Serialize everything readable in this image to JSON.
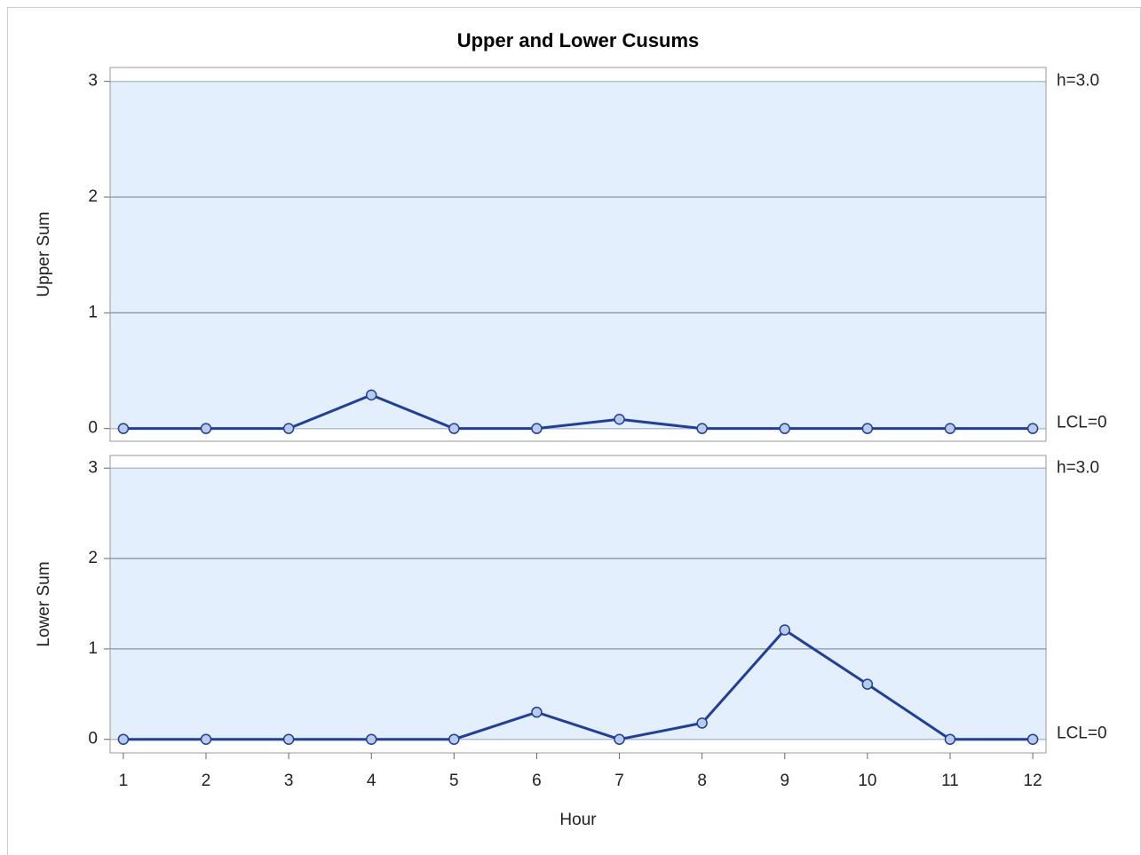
{
  "chart_data": [
    {
      "type": "line",
      "title": "Upper and Lower Cusums",
      "ylabel": "Upper Sum",
      "x": [
        1,
        2,
        3,
        4,
        5,
        6,
        7,
        8,
        9,
        10,
        11,
        12
      ],
      "values": [
        0,
        0,
        0,
        0.29,
        0,
        0,
        0.08,
        0,
        0,
        0,
        0,
        0
      ],
      "color": "#1f3f9f",
      "marker_color": "#b8cbe8",
      "xlim": [
        0.84,
        12.16
      ],
      "ylim": [
        -0.11,
        3.12
      ],
      "yticks": [
        0,
        1,
        2,
        3
      ],
      "grid": true,
      "limits": [
        {
          "value": 3,
          "label": "h=3.0"
        },
        {
          "value": 0,
          "label": "LCL=0"
        }
      ]
    },
    {
      "type": "line",
      "ylabel": "Lower Sum",
      "xlabel": "Hour",
      "x": [
        1,
        2,
        3,
        4,
        5,
        6,
        7,
        8,
        9,
        10,
        11,
        12
      ],
      "values": [
        0,
        0,
        0,
        0,
        0,
        0.3,
        0,
        0.18,
        1.21,
        0.61,
        0,
        0
      ],
      "color": "#1f3f9f",
      "marker_color": "#b8cbe8",
      "xlim": [
        0.84,
        12.16
      ],
      "ylim": [
        -0.15,
        3.14
      ],
      "yticks": [
        0,
        1,
        2,
        3
      ],
      "xticks": [
        1,
        2,
        3,
        4,
        5,
        6,
        7,
        8,
        9,
        10,
        11,
        12
      ],
      "grid": true,
      "limits": [
        {
          "value": 3,
          "label": "h=3.0"
        },
        {
          "value": 0,
          "label": "LCL=0"
        }
      ]
    }
  ]
}
